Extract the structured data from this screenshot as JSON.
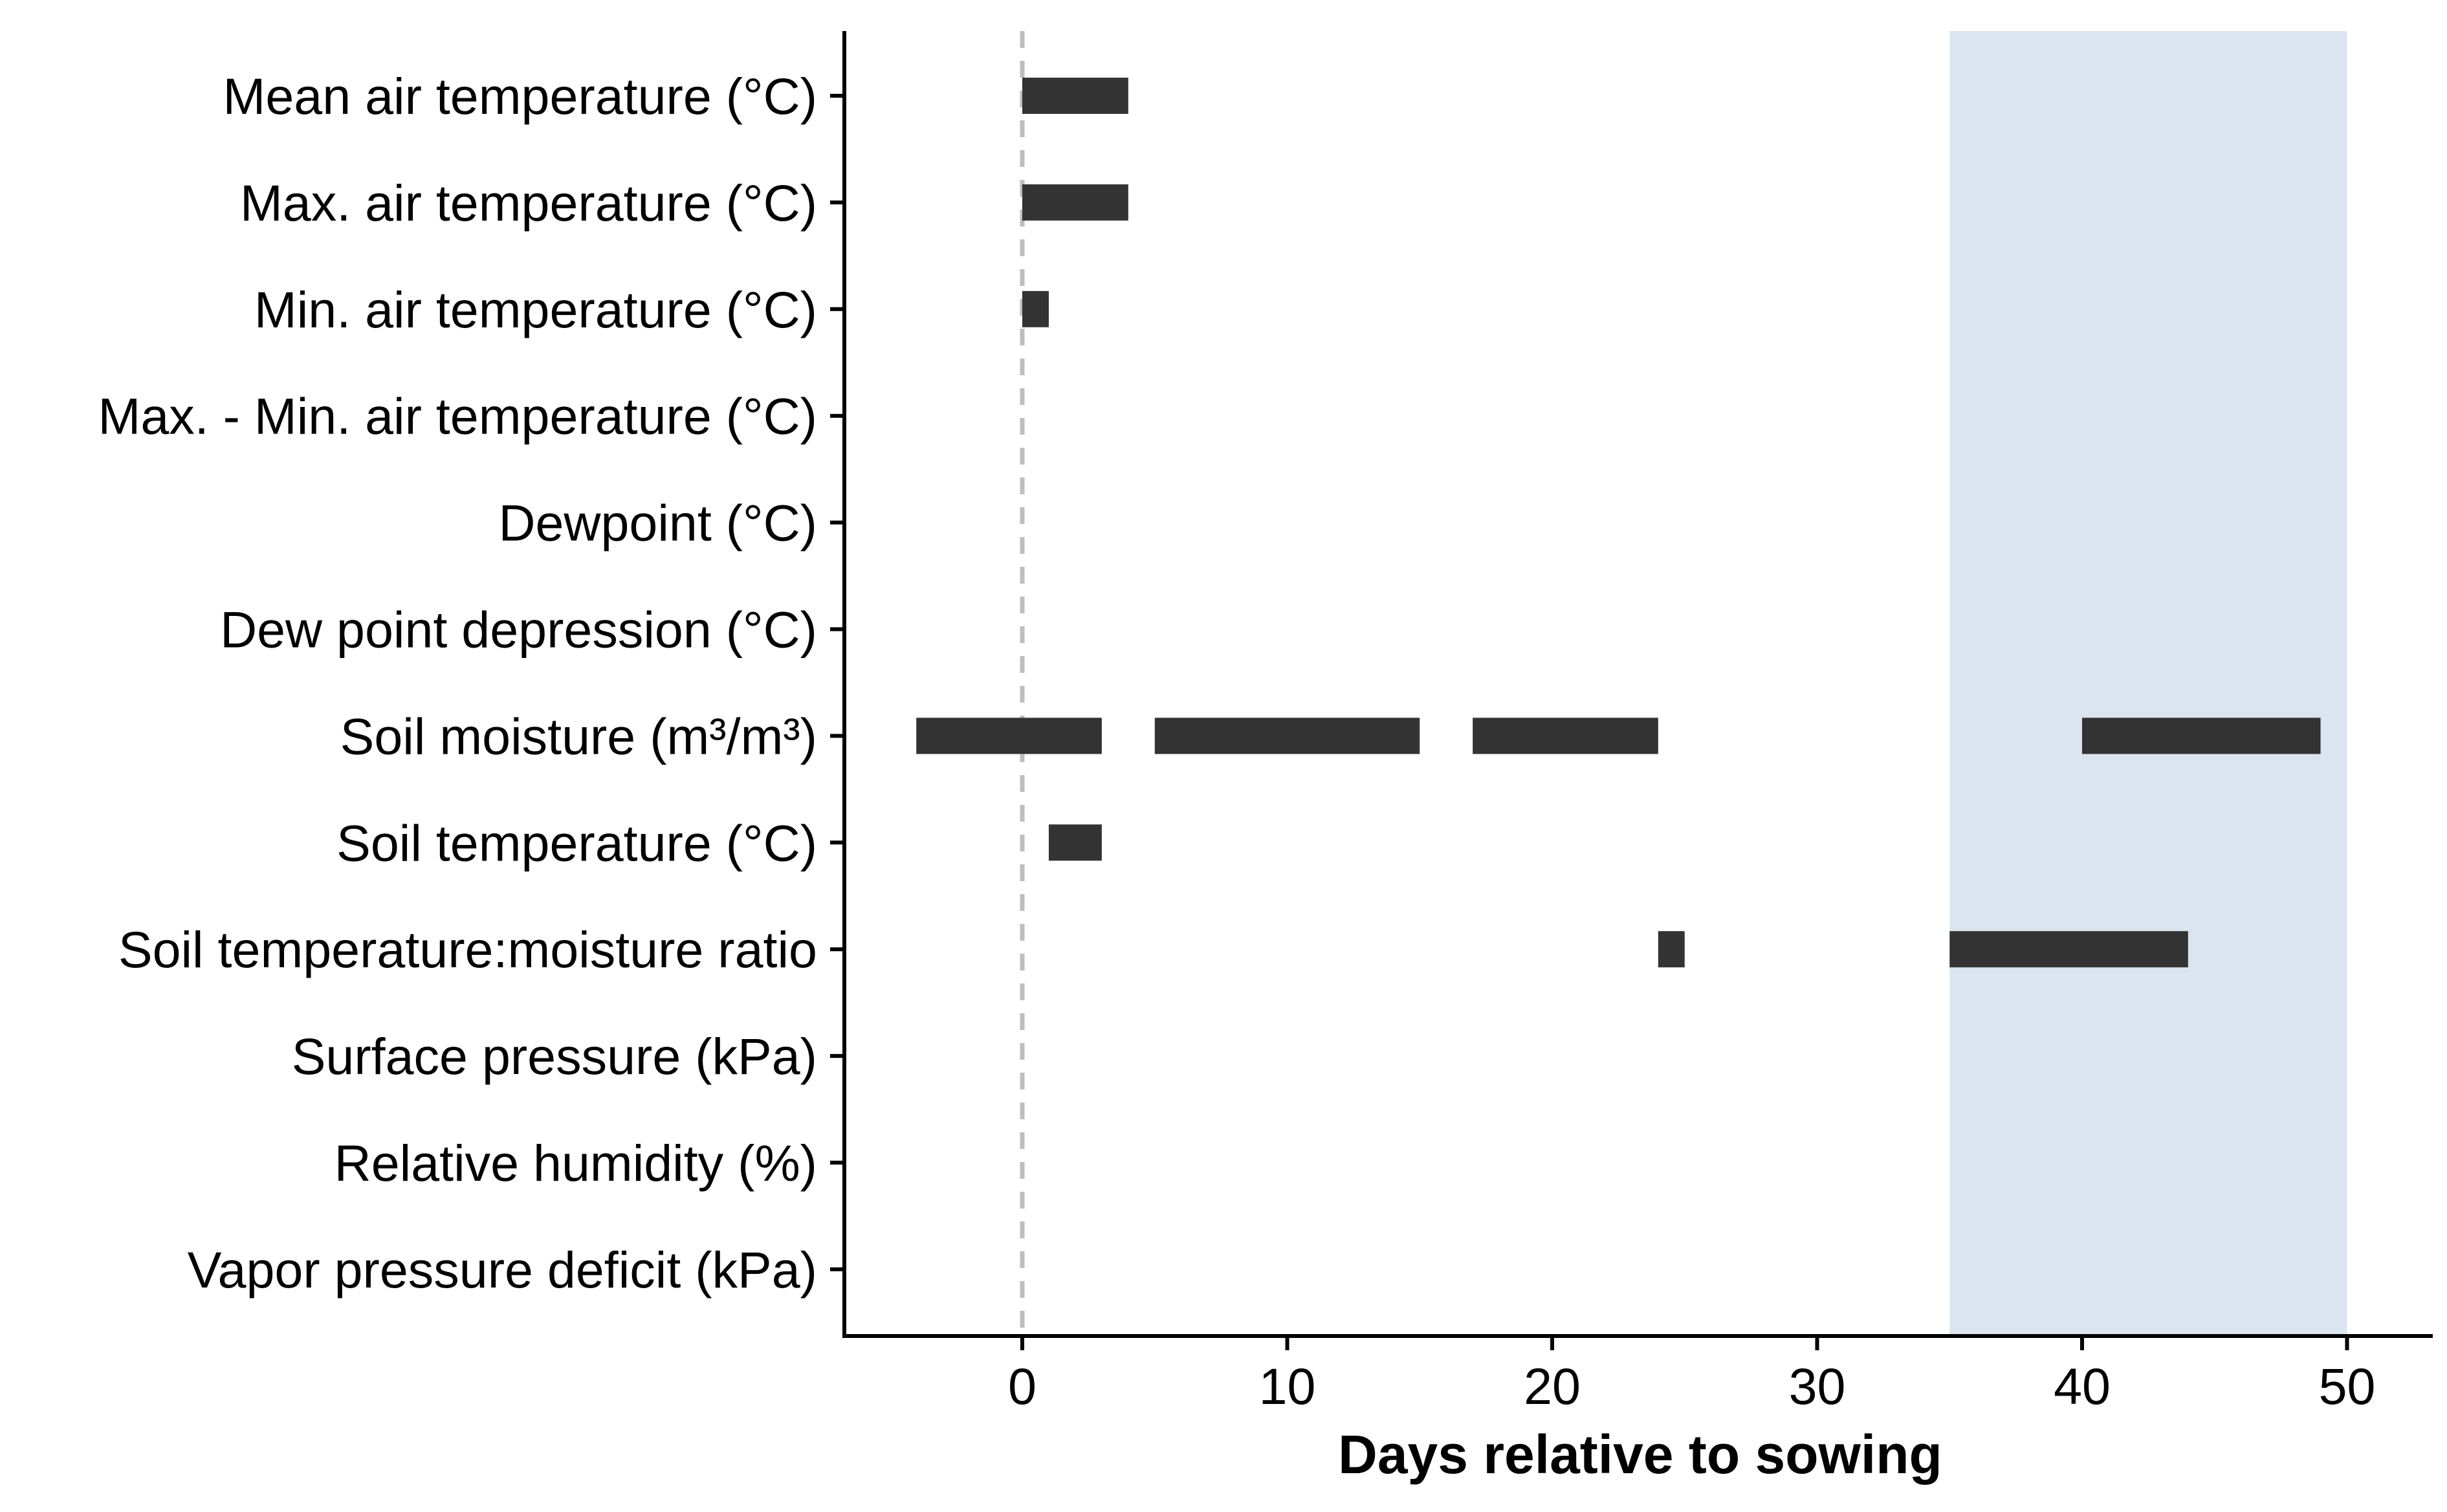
{
  "chart_data": {
    "type": "bar",
    "subtype": "horizontal-range",
    "title": "",
    "xlabel": "Days relative to sowing",
    "ylabel": "",
    "xlim": [
      -6.7,
      53
    ],
    "xticks": [
      0,
      10,
      20,
      30,
      40,
      50
    ],
    "xtick_labels": [
      "0",
      "10",
      "20",
      "30",
      "40",
      "50"
    ],
    "grid": false,
    "legend": "none",
    "reference_line": {
      "x": 0,
      "style": "dashed",
      "color": "#BEBEBE"
    },
    "highlight_band": {
      "x": [
        35,
        50
      ],
      "color": "#DAE5EF"
    },
    "bar_color": "#333333",
    "categories": [
      "Mean air temperature (°C)",
      "Max. air temperature (°C)",
      "Min. air temperature (°C)",
      "Max. - Min. air temperature (°C)",
      "Dewpoint (°C)",
      "Dew point depression (°C)",
      "Soil moisture (m³/m³)",
      "Soil temperature (°C)",
      "Soil temperature:moisture ratio",
      "Surface pressure (kPa)",
      "Relative humidity (%)",
      "Vapor pressure deficit (kPa)"
    ],
    "ranges": [
      {
        "category": "Mean air temperature (°C)",
        "start": 0,
        "end": 4
      },
      {
        "category": "Max. air temperature (°C)",
        "start": 0,
        "end": 4
      },
      {
        "category": "Min. air temperature (°C)",
        "start": 0,
        "end": 1
      },
      {
        "category": "Soil moisture (m³/m³)",
        "start": -4,
        "end": 3
      },
      {
        "category": "Soil moisture (m³/m³)",
        "start": 5,
        "end": 15
      },
      {
        "category": "Soil moisture (m³/m³)",
        "start": 17,
        "end": 24
      },
      {
        "category": "Soil moisture (m³/m³)",
        "start": 40,
        "end": 49
      },
      {
        "category": "Soil temperature (°C)",
        "start": 1,
        "end": 3
      },
      {
        "category": "Soil temperature:moisture ratio",
        "start": 24,
        "end": 25
      },
      {
        "category": "Soil temperature:moisture ratio",
        "start": 35,
        "end": 44
      }
    ]
  }
}
